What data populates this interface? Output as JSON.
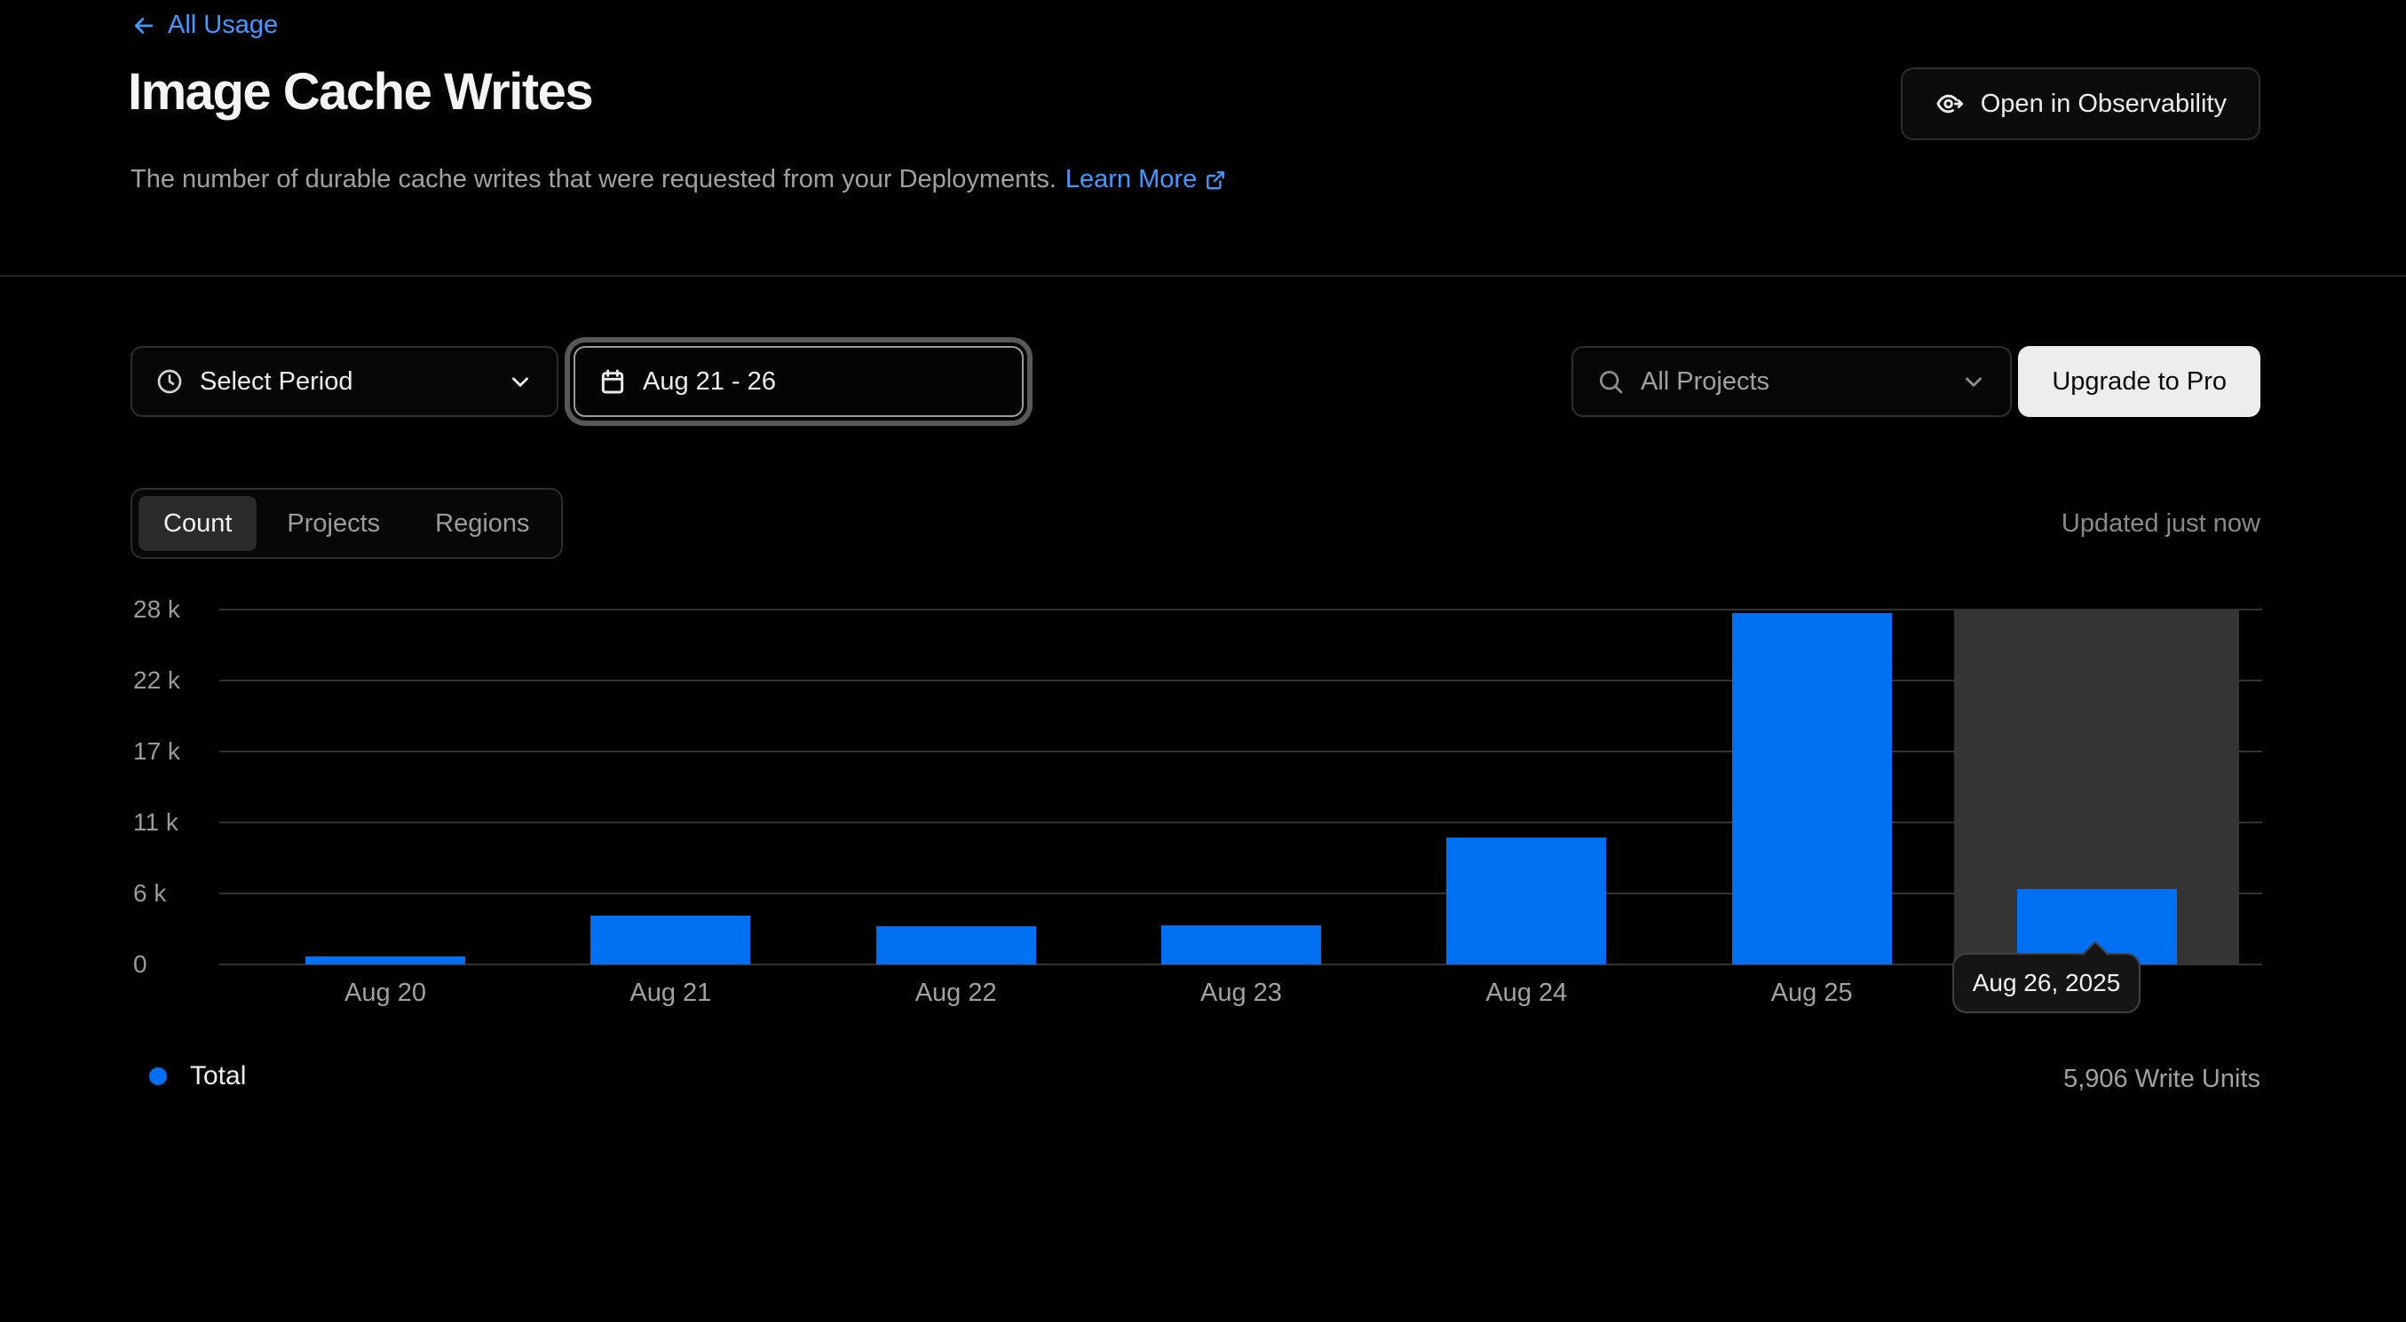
{
  "header": {
    "back_link": "All Usage",
    "title": "Image Cache Writes",
    "description": "The number of durable cache writes that were requested from your Deployments.",
    "learn_more": "Learn More",
    "observability_button": "Open in Observability"
  },
  "controls": {
    "select_period_label": "Select Period",
    "date_range_value": "Aug 21 - 26",
    "projects_filter_value": "All Projects",
    "upgrade_button": "Upgrade to Pro"
  },
  "tabs": [
    {
      "label": "Count",
      "active": true
    },
    {
      "label": "Projects",
      "active": false
    },
    {
      "label": "Regions",
      "active": false
    }
  ],
  "status": {
    "updated_text": "Updated just now"
  },
  "tooltip": {
    "label": "Aug 26, 2025"
  },
  "legend": {
    "series_label": "Total",
    "total_text": "5,906 Write Units"
  },
  "icons": {
    "back": "arrow-left",
    "observability": "eye-with-arrow",
    "learn_more": "external-link",
    "select_period": "clock",
    "date_range": "calendar",
    "projects": "search",
    "dropdowns": "chevron-down",
    "legend": "dot"
  },
  "colors": {
    "background": "#000000",
    "bar_blue": "#0070f3",
    "link_blue": "#4499ff",
    "grid": "#333333",
    "highlight": "#343434",
    "text_primary": "#ededed",
    "text_secondary": "#a1a1a1"
  },
  "chart_data": {
    "type": "bar",
    "title": "Image Cache Writes",
    "xlabel": "",
    "ylabel": "Write Units",
    "categories": [
      "Aug 20",
      "Aug 21",
      "Aug 22",
      "Aug 23",
      "Aug 24",
      "Aug 25",
      "Aug 26"
    ],
    "values": [
      650,
      3800,
      2950,
      3050,
      9900,
      27450,
      5906
    ],
    "series": [
      {
        "name": "Total",
        "values": [
          650,
          3800,
          2950,
          3050,
          9900,
          27450,
          5906
        ]
      }
    ],
    "ylim": [
      0,
      27700
    ],
    "yticks": [
      {
        "label": "0",
        "value": 0
      },
      {
        "label": "6 k",
        "value": 5540
      },
      {
        "label": "11 k",
        "value": 11080
      },
      {
        "label": "17 k",
        "value": 16620
      },
      {
        "label": "22 k",
        "value": 22160
      },
      {
        "label": "28 k",
        "value": 27700
      }
    ],
    "grid": "horizontal",
    "legend_position": "bottom-left",
    "highlight_index": 6,
    "highlight_tooltip": "Aug 26, 2025",
    "total_write_units": 5906
  }
}
